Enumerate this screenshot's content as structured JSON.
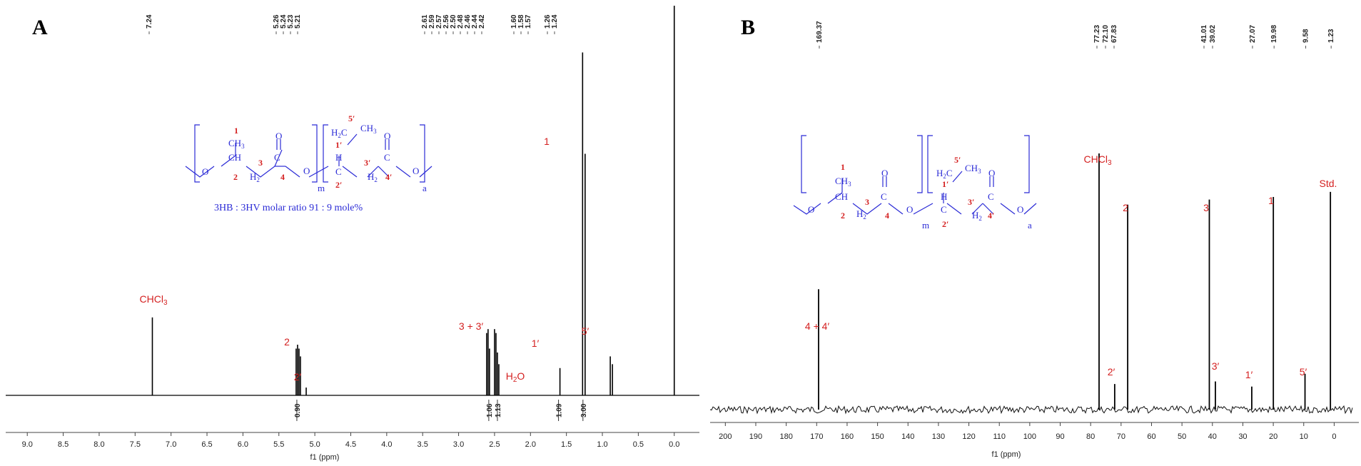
{
  "chart_data": [
    {
      "panel": "A",
      "type": "line",
      "xlabel": "f1 (ppm)",
      "xlim": [
        9.3,
        -0.35
      ],
      "x_ticks": [
        "9.0",
        "8.5",
        "8.0",
        "7.5",
        "7.0",
        "6.5",
        "6.0",
        "5.5",
        "5.0",
        "4.5",
        "4.0",
        "3.5",
        "3.0",
        "2.5",
        "2.0",
        "1.5",
        "1.0",
        "0.5",
        "0.0"
      ],
      "peak_list": [
        "7.24",
        "5.26",
        "5.24",
        "5.23",
        "5.21",
        "2.61",
        "2.59",
        "2.57",
        "2.56",
        "2.50",
        "2.48",
        "2.46",
        "2.44",
        "2.42",
        "1.60",
        "1.58",
        "1.57",
        "1.26",
        "1.24"
      ],
      "peaks": [
        {
          "x": 7.26,
          "y": 0.2
        },
        {
          "x": 5.26,
          "y": 0.12
        },
        {
          "x": 5.24,
          "y": 0.13
        },
        {
          "x": 5.22,
          "y": 0.12
        },
        {
          "x": 5.2,
          "y": 0.1
        },
        {
          "x": 5.12,
          "y": 0.02
        },
        {
          "x": 2.61,
          "y": 0.16
        },
        {
          "x": 2.59,
          "y": 0.17
        },
        {
          "x": 2.57,
          "y": 0.12
        },
        {
          "x": 2.5,
          "y": 0.17
        },
        {
          "x": 2.48,
          "y": 0.16
        },
        {
          "x": 2.46,
          "y": 0.11
        },
        {
          "x": 2.44,
          "y": 0.08
        },
        {
          "x": 1.59,
          "y": 0.07
        },
        {
          "x": 1.275,
          "y": 0.88
        },
        {
          "x": 1.24,
          "y": 0.62
        },
        {
          "x": 0.89,
          "y": 0.1
        },
        {
          "x": 0.86,
          "y": 0.08
        },
        {
          "x": 0.0,
          "y": 1.0
        }
      ],
      "annotations": [
        "CHCl3",
        "2",
        "2′",
        "3 + 3′",
        "H2O",
        "1′",
        "5′",
        "1"
      ],
      "integrals": [
        {
          "x": 5.25,
          "label": "0.90"
        },
        {
          "x": 2.58,
          "label": "1.06"
        },
        {
          "x": 2.46,
          "label": "1.13"
        },
        {
          "x": 1.61,
          "label": "1.09"
        },
        {
          "x": 1.27,
          "label": "3.00"
        }
      ],
      "structure": {
        "ch3": "CH3",
        "ch": "CH",
        "h2": "H2",
        "c": "C",
        "o": "O",
        "m": "m",
        "a": "a",
        "ch2": "H2C",
        "ch3b": "CH3",
        "hb": "H",
        "nums": [
          "1",
          "2",
          "3",
          "4",
          "1′",
          "2′",
          "3′",
          "4′",
          "5′"
        ],
        "ratio": "3HB : 3HV molar ratio 91 : 9 mole%"
      }
    },
    {
      "panel": "B",
      "type": "line",
      "xlabel": "f1 (ppm)",
      "xlim": [
        205,
        -6
      ],
      "x_ticks": [
        "200",
        "190",
        "180",
        "170",
        "160",
        "150",
        "140",
        "130",
        "120",
        "110",
        "100",
        "90",
        "80",
        "70",
        "60",
        "50",
        "40",
        "30",
        "20",
        "10",
        "0"
      ],
      "peak_list": [
        "169.37",
        "77.23",
        "72.10",
        "67.83",
        "41.01",
        "39.02",
        "27.07",
        "19.98",
        "9.58",
        "1.23"
      ],
      "peaks": [
        {
          "x": 169.37,
          "y": 0.47
        },
        {
          "x": 77.23,
          "y": 1.0
        },
        {
          "x": 72.1,
          "y": 0.1
        },
        {
          "x": 67.83,
          "y": 0.8
        },
        {
          "x": 41.01,
          "y": 0.82
        },
        {
          "x": 39.02,
          "y": 0.11
        },
        {
          "x": 27.07,
          "y": 0.09
        },
        {
          "x": 19.98,
          "y": 0.83
        },
        {
          "x": 9.58,
          "y": 0.14
        },
        {
          "x": 1.23,
          "y": 0.85
        }
      ],
      "annotations": [
        "4 + 4′",
        "CHCl3",
        "2",
        "2′",
        "3",
        "3′",
        "1",
        "1′",
        "5′",
        "Std."
      ]
    }
  ],
  "panel_labels": [
    "A",
    "B"
  ]
}
